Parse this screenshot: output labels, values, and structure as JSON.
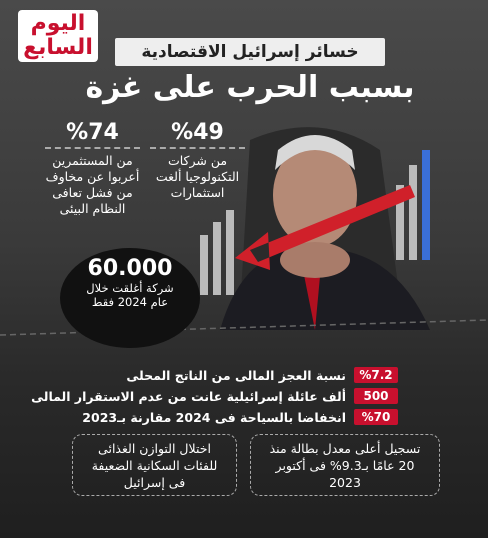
{
  "logo": {
    "line1": "اليوم",
    "line2": "السابع"
  },
  "header": {
    "title": "خسائر إسرائيل الاقتصادية",
    "subtitle": "بسبب الحرب على غزة"
  },
  "stats": [
    {
      "value": "%49",
      "text": "من شركات التكنولوجيا ألغت استثمارات"
    },
    {
      "value": "%74",
      "text": "من المستثمرين أعربوا عن مخاوف من فشل تعافى النظام البيئى"
    }
  ],
  "circle": {
    "value": "60.000",
    "text": "شركة أغلقت خلال عام 2024 فقط"
  },
  "rows": [
    {
      "value": "%7.2",
      "text": "نسبة العجز المالى من الناتج المحلى"
    },
    {
      "value": "500",
      "text": "ألف عائلة إسرائيلية عانت من عدم الاستقرار المالى"
    },
    {
      "value": "%70",
      "text": "انخفاضا بالسياحة فى 2024 مقارنة بـ2023"
    }
  ],
  "boxes": [
    {
      "text": "تسجيل أعلى معدل بطالة منذ 20 عامًا بـ9.3% فى أكتوبر 2023"
    },
    {
      "text": "اختلال التوازن الغذائى للفئات السكانية الضعيفة فى إسرائيل"
    }
  ]
}
